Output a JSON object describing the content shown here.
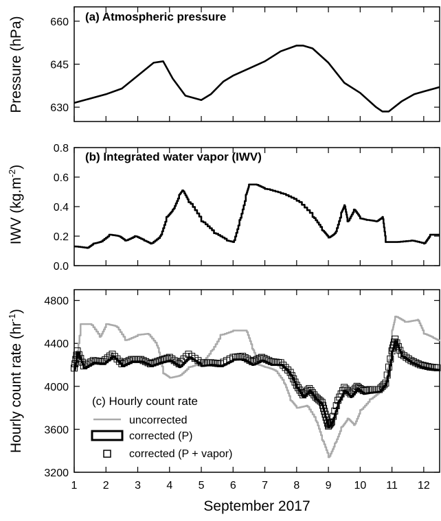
{
  "chart_data": [
    {
      "type": "line",
      "title": "(a) Atmospheric pressure",
      "ylabel": "Pressure (hPa)",
      "xlim": [
        1,
        12.5
      ],
      "ylim": [
        625,
        665
      ],
      "yticks": [
        "630",
        "645",
        "660"
      ],
      "series": [
        {
          "x": [
            1.0,
            1.5,
            2.0,
            2.5,
            3.0,
            3.5,
            3.8,
            4.1,
            4.5,
            5.0,
            5.3,
            5.7,
            6.0,
            6.5,
            7.0,
            7.5,
            8.0,
            8.2,
            8.5,
            9.0,
            9.5,
            10.0,
            10.5,
            10.7,
            10.9,
            11.3,
            11.7,
            12.0,
            12.5
          ],
          "y": [
            631.5,
            633,
            634.5,
            636.5,
            641,
            645.5,
            646,
            640,
            634,
            632.5,
            634.5,
            639,
            641,
            643.5,
            646,
            649.5,
            651.5,
            651.5,
            650.5,
            645.5,
            638.5,
            635,
            630,
            628.5,
            628.5,
            632,
            634.5,
            635.5,
            637
          ]
        }
      ]
    },
    {
      "type": "line",
      "title": "(b) Integrated water vapor (IWV)",
      "ylabel": "IWV (kg.m",
      "ylabel_sup": "-2",
      "ylabel_close": ")",
      "xlim": [
        1,
        12.5
      ],
      "ylim": [
        0,
        0.8
      ],
      "yticks": [
        "0.0",
        "0.2",
        "0.4",
        "0.6",
        "0.8"
      ],
      "series": [
        {
          "x": [
            1.0,
            1.4,
            1.6,
            1.8,
            2.1,
            2.4,
            2.6,
            2.9,
            3.2,
            3.4,
            3.7,
            3.9,
            4.1,
            4.3,
            4.4,
            4.6,
            5.0,
            5.4,
            5.8,
            6.0,
            6.2,
            6.4,
            6.5,
            6.7,
            7.0,
            7.5,
            8.0,
            8.5,
            8.8,
            9.0,
            9.2,
            9.4,
            9.5,
            9.6,
            9.8,
            10.0,
            10.2,
            10.5,
            10.7,
            10.8,
            11.1,
            11.6,
            12.0,
            12.2,
            12.5
          ],
          "y": [
            0.13,
            0.12,
            0.15,
            0.16,
            0.21,
            0.2,
            0.17,
            0.2,
            0.17,
            0.15,
            0.2,
            0.33,
            0.38,
            0.48,
            0.51,
            0.43,
            0.3,
            0.22,
            0.17,
            0.16,
            0.31,
            0.48,
            0.55,
            0.55,
            0.52,
            0.49,
            0.44,
            0.33,
            0.24,
            0.19,
            0.22,
            0.36,
            0.41,
            0.3,
            0.38,
            0.32,
            0.31,
            0.3,
            0.33,
            0.16,
            0.16,
            0.17,
            0.15,
            0.21,
            0.21
          ]
        }
      ]
    },
    {
      "type": "line",
      "title": "(c) Hourly count rate",
      "ylabel": "Hourly count rate (hr",
      "ylabel_sup": "-1",
      "ylabel_close": ")",
      "xlabel": "September 2017",
      "xlim": [
        1,
        12.5
      ],
      "ylim": [
        3200,
        4900
      ],
      "xticks": [
        "1",
        "2",
        "3",
        "4",
        "5",
        "6",
        "7",
        "8",
        "9",
        "10",
        "11",
        "12"
      ],
      "yticks": [
        "3200",
        "3600",
        "4000",
        "4400",
        "4800"
      ],
      "series": [
        {
          "name": "uncorrected",
          "color": "#aaaaaa",
          "x": [
            1.0,
            1.2,
            1.5,
            1.8,
            2.0,
            2.3,
            2.6,
            3.0,
            3.3,
            3.6,
            3.8,
            4.0,
            4.3,
            4.6,
            5.0,
            5.3,
            5.6,
            6.0,
            6.4,
            6.6,
            6.8,
            7.0,
            7.3,
            7.6,
            7.8,
            8.0,
            8.3,
            8.6,
            8.8,
            9.0,
            9.2,
            9.4,
            9.6,
            9.8,
            10.0,
            10.3,
            10.6,
            10.8,
            11.0,
            11.1,
            11.4,
            11.8,
            12.0,
            12.3,
            12.5
          ],
          "y": [
            4150,
            4580,
            4580,
            4460,
            4580,
            4560,
            4430,
            4480,
            4490,
            4380,
            4120,
            4080,
            4100,
            4180,
            4220,
            4330,
            4480,
            4520,
            4520,
            4350,
            4200,
            4180,
            4150,
            4030,
            3870,
            3800,
            3820,
            3680,
            3500,
            3340,
            3470,
            3620,
            3700,
            3640,
            3780,
            3880,
            3950,
            4050,
            4520,
            4650,
            4600,
            4620,
            4490,
            4450,
            4420
          ]
        },
        {
          "name": "corrected (P)",
          "color": "#000000",
          "x": [
            1.0,
            1.1,
            1.3,
            1.6,
            1.9,
            2.2,
            2.5,
            2.8,
            3.1,
            3.4,
            3.7,
            4.0,
            4.3,
            4.6,
            5.0,
            5.3,
            5.6,
            6.0,
            6.3,
            6.6,
            6.9,
            7.2,
            7.5,
            7.8,
            8.0,
            8.2,
            8.4,
            8.6,
            8.8,
            8.9,
            9.0,
            9.1,
            9.3,
            9.5,
            9.7,
            9.9,
            10.1,
            10.3,
            10.6,
            10.8,
            11.0,
            11.1,
            11.3,
            11.6,
            11.9,
            12.2,
            12.5
          ],
          "y": [
            4150,
            4310,
            4170,
            4220,
            4210,
            4280,
            4190,
            4230,
            4230,
            4190,
            4220,
            4240,
            4180,
            4270,
            4190,
            4200,
            4190,
            4250,
            4250,
            4200,
            4240,
            4200,
            4200,
            4110,
            3990,
            3900,
            3960,
            3880,
            3830,
            3720,
            3620,
            3660,
            3850,
            3960,
            3900,
            3980,
            3930,
            3940,
            3950,
            4020,
            4320,
            4420,
            4280,
            4220,
            4180,
            4160,
            4150
          ]
        },
        {
          "name": "corrected (P + vapor)",
          "color": "#000000",
          "x": [
            1.0,
            1.1,
            1.3,
            1.6,
            1.9,
            2.2,
            2.5,
            2.8,
            3.1,
            3.4,
            3.7,
            4.0,
            4.3,
            4.6,
            5.0,
            5.3,
            5.6,
            6.0,
            6.3,
            6.6,
            6.9,
            7.2,
            7.5,
            7.8,
            8.0,
            8.2,
            8.4,
            8.6,
            8.8,
            8.9,
            9.0,
            9.1,
            9.3,
            9.5,
            9.7,
            9.9,
            10.1,
            10.3,
            10.6,
            10.8,
            11.0,
            11.1,
            11.3,
            11.6,
            11.9,
            12.2,
            12.5
          ],
          "y": [
            4170,
            4330,
            4190,
            4240,
            4230,
            4300,
            4210,
            4250,
            4250,
            4210,
            4240,
            4270,
            4210,
            4300,
            4220,
            4220,
            4210,
            4270,
            4280,
            4230,
            4270,
            4230,
            4220,
            4130,
            4010,
            3920,
            3980,
            3900,
            3850,
            3740,
            3630,
            3670,
            3870,
            3990,
            3930,
            4000,
            3960,
            3970,
            3970,
            4030,
            4330,
            4440,
            4300,
            4240,
            4200,
            4180,
            4170
          ]
        }
      ],
      "legend": [
        "uncorrected",
        "corrected (P)",
        "corrected (P + vapor)"
      ]
    }
  ]
}
